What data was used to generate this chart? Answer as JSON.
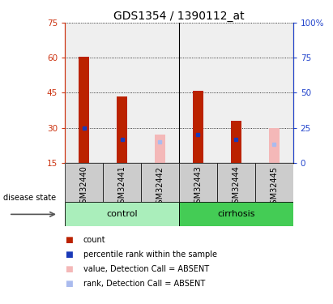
{
  "title": "GDS1354 / 1390112_at",
  "samples": [
    "GSM32440",
    "GSM32441",
    "GSM32442",
    "GSM32443",
    "GSM32444",
    "GSM32445"
  ],
  "ylim_left": [
    15,
    75
  ],
  "ylim_right": [
    0,
    100
  ],
  "yticks_left": [
    15,
    30,
    45,
    60,
    75
  ],
  "yticks_right": [
    0,
    25,
    50,
    75,
    100
  ],
  "baseline": 15,
  "red_bar_tops": [
    60.5,
    43.5,
    15,
    46,
    33,
    15
  ],
  "absent_mask": [
    false,
    false,
    true,
    false,
    false,
    true
  ],
  "pink_bar_tops": [
    15,
    15,
    27,
    15,
    15,
    30
  ],
  "blue_marker_y": [
    30,
    25,
    15,
    27,
    25,
    15
  ],
  "light_blue_marker_y": [
    15,
    15,
    24,
    15,
    15,
    23
  ],
  "bar_color_red": "#bb2200",
  "bar_color_pink": "#f4b8b8",
  "marker_color_blue": "#1a3ab8",
  "marker_color_lightblue": "#aabbee",
  "left_axis_color": "#cc3311",
  "right_axis_color": "#2244cc",
  "bar_width": 0.28,
  "control_color": "#aaeebb",
  "cirrhosis_color": "#44cc55",
  "sample_bg_color": "#cccccc",
  "title_fontsize": 10,
  "tick_fontsize": 7.5,
  "sample_fontsize": 7,
  "group_fontsize": 8,
  "legend_fontsize": 7
}
